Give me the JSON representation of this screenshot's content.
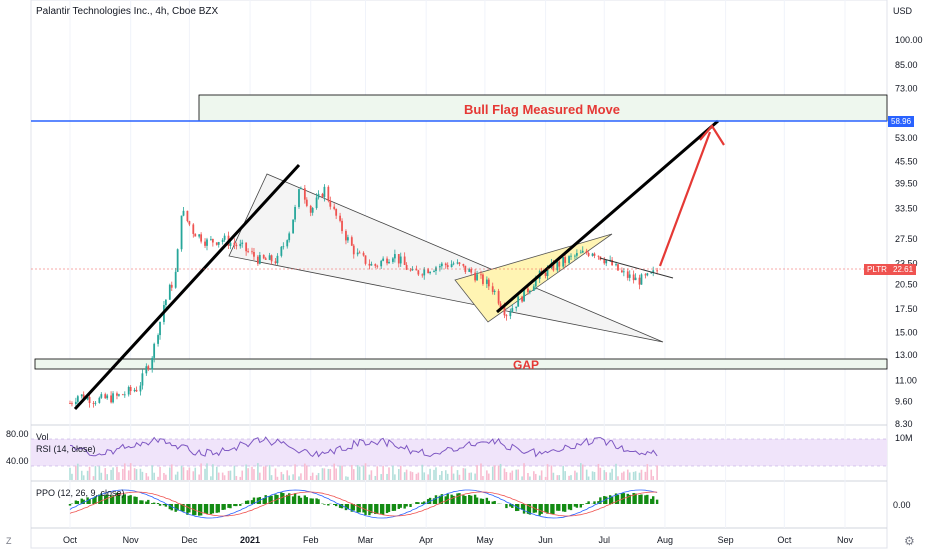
{
  "header": {
    "title": "Palantir Technologies Inc., 4h, Cboe BZX"
  },
  "indicators": {
    "vol_label": "Vol",
    "rsi_label": "RSI (14, close)",
    "ppo_label": "PPO (12, 26, 9, close)"
  },
  "icons": {
    "z_icon": "Z",
    "gear_icon": "gear-icon"
  },
  "colors": {
    "price_line": "#2962ff",
    "up": "#26a69a",
    "down": "#ef5350",
    "rsi_band": "#e9d9f7",
    "rsi_line": "#7e57c2",
    "ppo_hist": "#138b13",
    "annotation_red": "#e53935",
    "box_fill": "#eef7ee",
    "flag_fill": "#fff4b3"
  },
  "chart_data": {
    "type": "line",
    "title": "Palantir Technologies Inc., 4h, Cboe BZX",
    "currency": "USD",
    "symbol": "PLTR",
    "last_price": "22.61",
    "price_line_label": "58.96",
    "annotations": {
      "bull_flag": "Bull Flag Measured Move",
      "gap": "GAP"
    },
    "y_axis": {
      "scale": "log",
      "ticks": [
        "100.00",
        "85.00",
        "73.00",
        "53.00",
        "45.50",
        "39.50",
        "33.50",
        "27.50",
        "23.50",
        "20.50",
        "17.50",
        "15.00",
        "13.00",
        "11.00",
        "9.60",
        "8.30"
      ]
    },
    "rsi_axis": {
      "ticks": [
        "80.00",
        "40.00"
      ]
    },
    "ppo_axis": {
      "ticks": [
        "0.00"
      ]
    },
    "vol_axis": {
      "ticks": [
        "10M"
      ]
    },
    "x_axis": {
      "ticks": [
        "Oct",
        "Nov",
        "Dec",
        "2021",
        "Feb",
        "Mar",
        "Apr",
        "May",
        "Jun",
        "Jul",
        "Aug",
        "Sep",
        "Oct",
        "Nov"
      ]
    },
    "series": [
      {
        "values": [
          [
            "2020-10-01",
            9.5
          ],
          [
            "2020-10-05",
            10.0
          ],
          [
            "2020-10-15",
            9.7
          ],
          [
            "2020-10-25",
            9.9
          ],
          [
            "2020-11-05",
            10.5
          ],
          [
            "2020-11-12",
            13.0
          ],
          [
            "2020-11-18",
            18.0
          ],
          [
            "2020-11-24",
            22.0
          ],
          [
            "2020-11-27",
            33.0
          ],
          [
            "2020-12-03",
            29.0
          ],
          [
            "2020-12-10",
            27.0
          ],
          [
            "2020-12-18",
            27.5
          ],
          [
            "2020-12-28",
            26.0
          ],
          [
            "2021-01-06",
            24.0
          ],
          [
            "2021-01-15",
            24.0
          ],
          [
            "2021-01-22",
            30.0
          ],
          [
            "2021-01-27",
            39.0
          ],
          [
            "2021-02-01",
            33.0
          ],
          [
            "2021-02-08",
            38.0
          ],
          [
            "2021-02-16",
            30.0
          ],
          [
            "2021-02-24",
            25.0
          ],
          [
            "2021-03-05",
            23.0
          ],
          [
            "2021-03-15",
            25.0
          ],
          [
            "2021-03-25",
            22.0
          ],
          [
            "2021-04-05",
            23.0
          ],
          [
            "2021-04-15",
            23.5
          ],
          [
            "2021-04-25",
            22.0
          ],
          [
            "2021-05-05",
            20.0
          ],
          [
            "2021-05-12",
            17.0
          ],
          [
            "2021-05-20",
            19.0
          ],
          [
            "2021-05-28",
            21.5
          ],
          [
            "2021-06-05",
            23.0
          ],
          [
            "2021-06-15",
            24.5
          ],
          [
            "2021-06-25",
            25.5
          ],
          [
            "2021-07-02",
            24.0
          ],
          [
            "2021-07-10",
            22.0
          ],
          [
            "2021-07-18",
            21.0
          ],
          [
            "2021-07-24",
            21.5
          ],
          [
            "2021-07-29",
            22.61
          ]
        ]
      }
    ],
    "levels": [
      {
        "label": "58.96",
        "value": 58.96
      }
    ]
  }
}
